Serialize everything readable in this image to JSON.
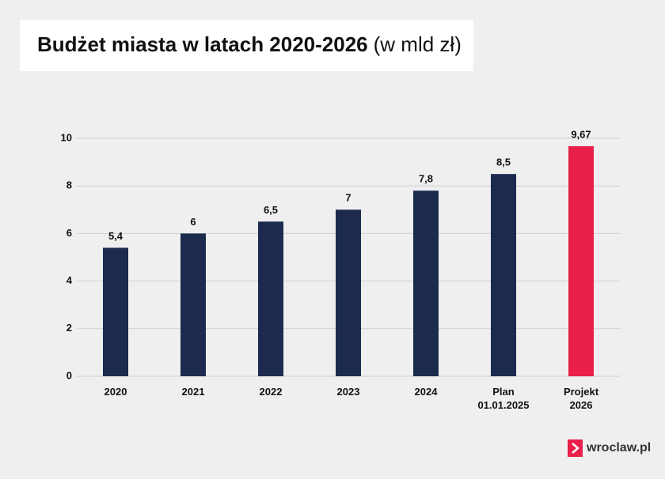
{
  "chart_data": {
    "type": "bar",
    "title": "Budżet miasta w latach 2020-2026",
    "subtitle": "(w mld zł)",
    "categories": [
      "2020",
      "2021",
      "2022",
      "2023",
      "2024",
      "Plan 01.01.2025",
      "Projekt 2026"
    ],
    "values": [
      5.4,
      6,
      6.5,
      7,
      7.8,
      8.5,
      9.67
    ],
    "value_labels": [
      "5,4",
      "6",
      "6,5",
      "7",
      "7,8",
      "8,5",
      "9,67"
    ],
    "colors": [
      "#1c2a4e",
      "#1c2a4e",
      "#1c2a4e",
      "#1c2a4e",
      "#1c2a4e",
      "#1c2a4e",
      "#e8204a"
    ],
    "ylim": [
      0,
      10
    ],
    "yticks": [
      0,
      2,
      4,
      6,
      8,
      10
    ],
    "grid": true
  },
  "logo": "wroclaw.pl"
}
